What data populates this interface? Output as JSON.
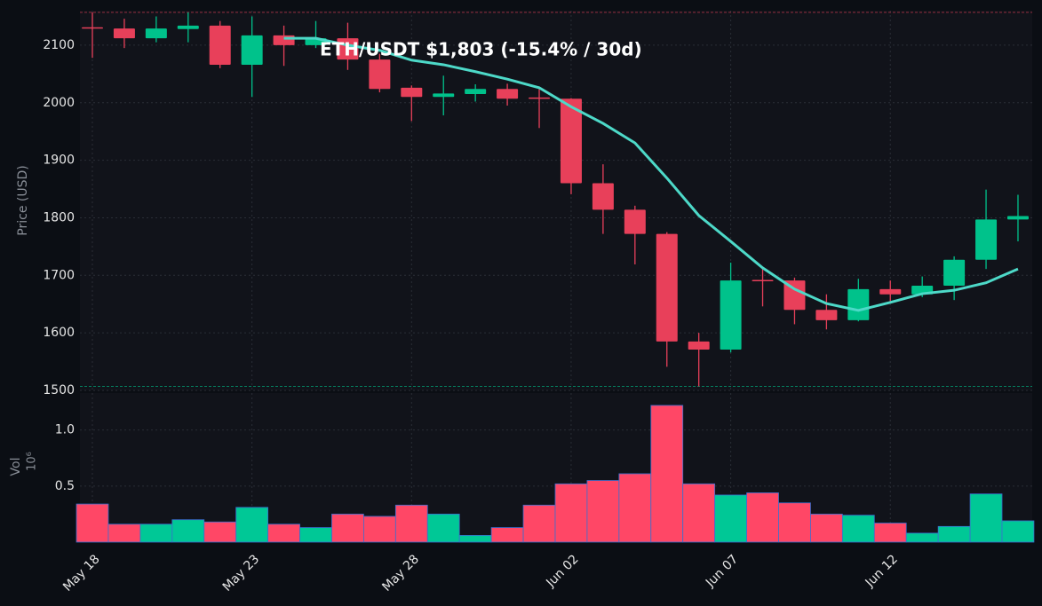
{
  "chart_data": [
    {
      "type": "candlestick",
      "title": "ETH/USDT   $1,803   (-15.4% / 30d)",
      "ylabel": "Price (USD)",
      "categories": [
        "May 18",
        null,
        null,
        null,
        null,
        "May 23",
        null,
        null,
        null,
        null,
        "May 28",
        null,
        null,
        null,
        null,
        "Jun 02",
        null,
        null,
        null,
        null,
        "Jun 07",
        null,
        null,
        null,
        null,
        "Jun 12",
        null,
        null,
        null,
        null
      ],
      "open": [
        2131,
        2129,
        2112,
        2128,
        2134,
        2066,
        2117,
        2100,
        2112,
        2075,
        2026,
        2010,
        2015,
        2024,
        2009,
        2007,
        1860,
        1814,
        1772,
        1585,
        1571,
        1692,
        1691,
        1640,
        1622,
        1676,
        1667,
        1682,
        1727,
        1797
      ],
      "high": [
        2157,
        2146,
        2150,
        2157,
        2142,
        2150,
        2134,
        2142,
        2139,
        2085,
        2030,
        2047,
        2032,
        2033,
        2024,
        2008,
        1893,
        1821,
        1775,
        1600,
        1722,
        1713,
        1696,
        1667,
        1694,
        1691,
        1698,
        1733,
        1849,
        1840
      ],
      "low": [
        2078,
        2095,
        2105,
        2105,
        2060,
        2010,
        2064,
        2095,
        2057,
        2018,
        1968,
        1978,
        2002,
        1995,
        1956,
        1841,
        1772,
        1719,
        1541,
        1507,
        1566,
        1646,
        1615,
        1606,
        1620,
        1654,
        1662,
        1657,
        1711,
        1759
      ],
      "close": [
        2130,
        2112,
        2129,
        2134,
        2066,
        2117,
        2100,
        2112,
        2075,
        2024,
        2010,
        2016,
        2024,
        2007,
        2008,
        1860,
        1814,
        1772,
        1585,
        1571,
        1691,
        1691,
        1640,
        1622,
        1676,
        1667,
        1682,
        1727,
        1797,
        1803
      ],
      "moving_average": {
        "color": "#4dd9c8",
        "values": [
          null,
          null,
          null,
          null,
          null,
          null,
          2112,
          2112,
          2100,
          2091,
          2074,
          2066,
          2054,
          2041,
          2026,
          1993,
          1964,
          1930,
          1869,
          1804,
          1759,
          1713,
          1676,
          1651,
          1639,
          1653,
          1668,
          1674,
          1687,
          1711
        ]
      },
      "up_color": "#00c28b",
      "down_color": "#e8405a",
      "ylim": [
        1500,
        2160
      ],
      "yticks": [
        1500,
        1600,
        1700,
        1800,
        1900,
        2000,
        2100
      ],
      "grid": true
    },
    {
      "type": "bar",
      "ylabel": "Vol",
      "offset_text": "10⁶",
      "values": [
        0.34,
        0.16,
        0.16,
        0.2,
        0.18,
        0.31,
        0.16,
        0.13,
        0.25,
        0.23,
        0.33,
        0.25,
        0.06,
        0.13,
        0.33,
        0.52,
        0.55,
        0.61,
        1.22,
        0.52,
        0.42,
        0.44,
        0.35,
        0.25,
        0.24,
        0.17,
        0.08,
        0.14,
        0.43,
        0.19
      ],
      "up_color": "#00c896",
      "down_color": "#ff4766",
      "ylim": [
        0,
        1.33
      ],
      "yticks": [
        0.5,
        {
          "value": 1,
          "label": "1.0"
        }
      ],
      "grid": true
    }
  ]
}
